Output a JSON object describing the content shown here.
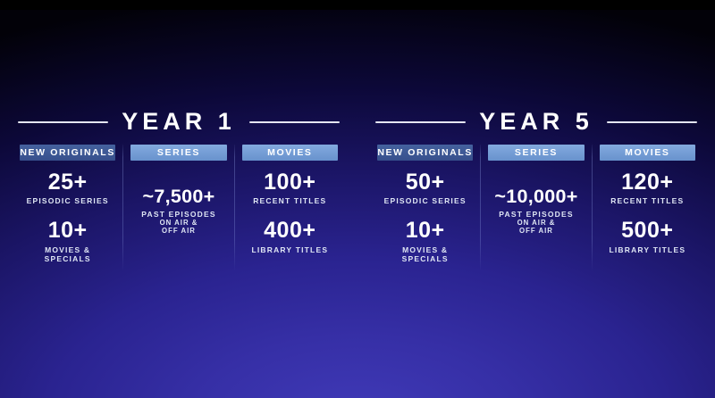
{
  "slide": {
    "years": [
      {
        "title": "YEAR 1",
        "columns": [
          {
            "header": "NEW ORIGINALS",
            "style": "dark",
            "stats": [
              {
                "value": "25+",
                "label": [
                  "EPISODIC SERIES"
                ]
              },
              {
                "value": "10+",
                "label": [
                  "MOVIES &",
                  "SPECIALS"
                ]
              }
            ]
          },
          {
            "header": "SERIES",
            "style": "light",
            "stats": [
              {
                "value": "~7,500+",
                "label": [
                  "PAST EPISODES",
                  "ON AIR &",
                  "OFF AIR"
                ]
              }
            ]
          },
          {
            "header": "MOVIES",
            "style": "light",
            "stats": [
              {
                "value": "100+",
                "label": [
                  "RECENT TITLES"
                ]
              },
              {
                "value": "400+",
                "label": [
                  "LIBRARY TITLES"
                ]
              }
            ]
          }
        ]
      },
      {
        "title": "YEAR 5",
        "columns": [
          {
            "header": "NEW ORIGINALS",
            "style": "dark",
            "stats": [
              {
                "value": "50+",
                "label": [
                  "EPISODIC SERIES"
                ]
              },
              {
                "value": "10+",
                "label": [
                  "MOVIES &",
                  "SPECIALS"
                ]
              }
            ]
          },
          {
            "header": "SERIES",
            "style": "light",
            "stats": [
              {
                "value": "~10,000+",
                "label": [
                  "PAST EPISODES",
                  "ON AIR &",
                  "OFF AIR"
                ]
              }
            ]
          },
          {
            "header": "MOVIES",
            "style": "light",
            "stats": [
              {
                "value": "120+",
                "label": [
                  "RECENT TITLES"
                ]
              },
              {
                "value": "500+",
                "label": [
                  "LIBRARY TITLES"
                ]
              }
            ]
          }
        ]
      }
    ]
  },
  "colors": {
    "chip_dark": "#3d5a9b",
    "chip_light": "#74a0d8",
    "background_center": "#3b35ad",
    "background_edge": "#04020d",
    "rule": "#f5f8ff",
    "text": "#ffffff",
    "label_text": "#dfe6f4"
  },
  "chart_data": {
    "type": "table",
    "title": "",
    "categories": [
      "YEAR 1",
      "YEAR 5"
    ],
    "series": [
      {
        "name": "New Originals - Episodic Series",
        "values": [
          "25+",
          "50+"
        ]
      },
      {
        "name": "New Originals - Movies & Specials",
        "values": [
          "10+",
          "10+"
        ]
      },
      {
        "name": "Series - Past Episodes On Air & Off Air",
        "values": [
          "~7,500+",
          "~10,000+"
        ]
      },
      {
        "name": "Movies - Recent Titles",
        "values": [
          "100+",
          "120+"
        ]
      },
      {
        "name": "Movies - Library Titles",
        "values": [
          "400+",
          "500+"
        ]
      }
    ],
    "legend_position": "none",
    "grid": false
  }
}
